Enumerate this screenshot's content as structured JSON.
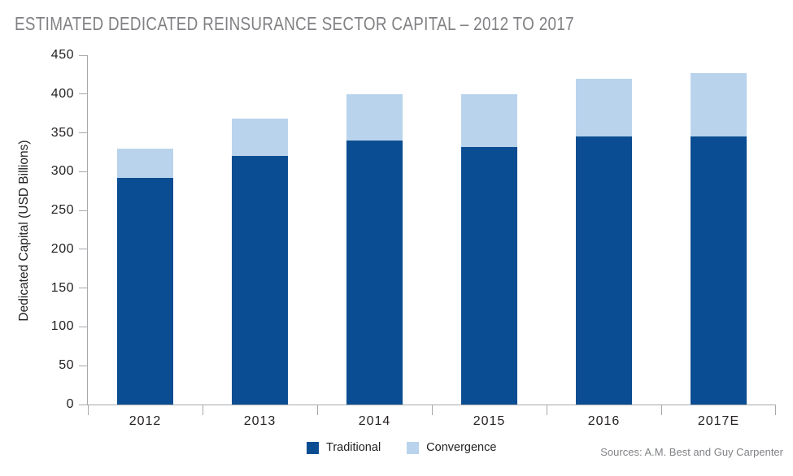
{
  "page": {
    "title": "ESTIMATED DEDICATED REINSURANCE SECTOR CAPITAL – 2012 TO 2017",
    "source_note": "Sources: A.M. Best and Guy Carpenter"
  },
  "colors": {
    "traditional": "#0b4d92",
    "convergence": "#b9d3ec",
    "axis": "#a6a8ab",
    "title_text": "#808184",
    "tick_text": "#231f20",
    "source_text": "#808285",
    "background": "#ffffff"
  },
  "chart_data": {
    "type": "bar",
    "stacked": true,
    "title": "ESTIMATED DEDICATED REINSURANCE SECTOR CAPITAL – 2012 TO 2017",
    "xlabel": "",
    "ylabel": "Dedicated Capital (USD Billions)",
    "categories": [
      "2012",
      "2013",
      "2014",
      "2015",
      "2016",
      "2017E"
    ],
    "series": [
      {
        "name": "Traditional",
        "color": "#0b4d92",
        "values": [
          292,
          320,
          340,
          332,
          345,
          345
        ]
      },
      {
        "name": "Convergence",
        "color": "#b9d3ec",
        "values": [
          38,
          48,
          60,
          68,
          75,
          82
        ]
      }
    ],
    "totals": [
      330,
      368,
      400,
      400,
      420,
      427
    ],
    "ylim": [
      0,
      450
    ],
    "yticks": [
      0,
      50,
      100,
      150,
      200,
      250,
      300,
      350,
      400,
      450
    ],
    "grid": false,
    "legend_position": "bottom",
    "source": "Sources: A.M. Best and Guy Carpenter"
  }
}
